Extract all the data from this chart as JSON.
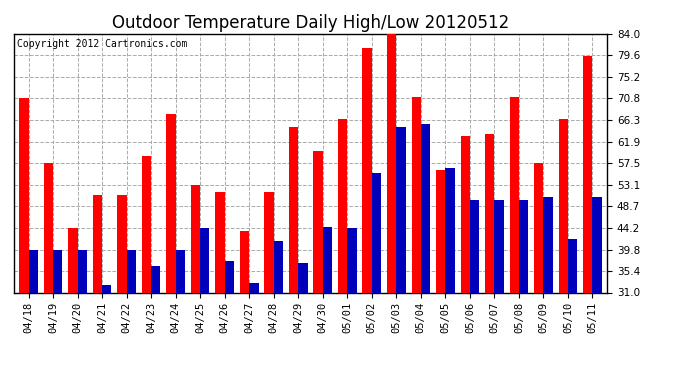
{
  "title": "Outdoor Temperature Daily High/Low 20120512",
  "copyright": "Copyright 2012 Cartronics.com",
  "categories": [
    "04/18",
    "04/19",
    "04/20",
    "04/21",
    "04/22",
    "04/23",
    "04/24",
    "04/25",
    "04/26",
    "04/27",
    "04/28",
    "04/29",
    "04/30",
    "05/01",
    "05/02",
    "05/03",
    "05/04",
    "05/05",
    "05/06",
    "05/07",
    "05/08",
    "05/09",
    "05/10",
    "05/11"
  ],
  "highs": [
    70.8,
    57.5,
    44.2,
    51.0,
    51.0,
    59.0,
    67.5,
    53.1,
    51.5,
    43.5,
    51.5,
    65.0,
    60.0,
    66.5,
    81.0,
    84.0,
    71.0,
    56.0,
    63.0,
    63.5,
    71.0,
    57.5,
    66.5,
    79.5
  ],
  "lows": [
    39.8,
    39.8,
    39.8,
    32.5,
    39.8,
    36.5,
    39.8,
    44.2,
    37.5,
    33.0,
    41.5,
    37.0,
    44.5,
    44.2,
    55.5,
    65.0,
    65.5,
    56.5,
    50.0,
    50.0,
    50.0,
    50.5,
    42.0,
    50.5
  ],
  "high_color": "#ff0000",
  "low_color": "#0000bb",
  "background_color": "#ffffff",
  "grid_color": "#aaaaaa",
  "ybase": 31.0,
  "ylim_min": 31.0,
  "ylim_max": 84.0,
  "yticks": [
    31.0,
    35.4,
    39.8,
    44.2,
    48.7,
    53.1,
    57.5,
    61.9,
    66.3,
    70.8,
    75.2,
    79.6,
    84.0
  ],
  "title_fontsize": 12,
  "copyright_fontsize": 7,
  "tick_fontsize": 7.5,
  "bar_width": 0.38
}
